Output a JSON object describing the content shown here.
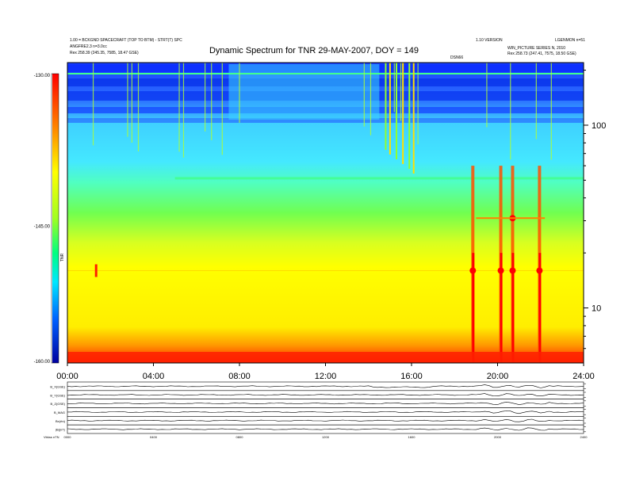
{
  "header": {
    "title": "Dynamic Spectrum for TNR 29-MAY-2007, DOY = 149",
    "left_line1": "1.00 = BCKGND SPACECRAFT (TOP TO BTM) - STRT(T) SPC",
    "left_line2": "ANGFRE2.3 n=3.0cc",
    "left_line3": "Rex   258.39 (245.35, 7585, 18.47 GSE)",
    "right_line1": "1.10 VERSION",
    "right_line2": "LGENMON n=51",
    "right_line3": "WIN_PICTURE SERIES N, 2010",
    "right_line4": "Rex   258.73 (247.41, 7575, 18.50 GSE)",
    "top_marker": "DSN66"
  },
  "chart_data": [
    {
      "type": "heatmap",
      "title": "Dynamic Spectrum for TNR 29-MAY-2007, DOY = 149",
      "x_ticks": [
        "00:00",
        "04:00",
        "08:00",
        "12:00",
        "16:00",
        "20:00",
        "24:00"
      ],
      "x_range_hours": [
        0,
        24
      ],
      "y_scale": "log",
      "y_ticks": [
        "100",
        "10"
      ],
      "y_range": [
        5,
        220
      ],
      "colorbar_ticks": [
        "-130.00",
        "-145.00",
        "-160.00"
      ],
      "colorbar_range": [
        -160,
        -130
      ],
      "colorbar_label": "TNR",
      "colormap": [
        "#0000b0",
        "#0050ff",
        "#00e0ff",
        "#00ff70",
        "#d8ff00",
        "#ffff00",
        "#ff8000",
        "#ff0000"
      ],
      "bursts_hours": [
        18.85,
        20.15,
        20.7,
        21.95
      ]
    },
    {
      "type": "line",
      "panels": [
        "B_X(GSE)",
        "B_Y(GSE)",
        "B_Z(GSE)",
        "B_MAG",
        "Bx(rtn)",
        "|B|(nT)"
      ],
      "x_ticks": [
        "0000",
        "0400",
        "0800",
        "1200",
        "1600",
        "2000",
        "2400"
      ],
      "footer_label": "Vbkss   nTN"
    }
  ]
}
